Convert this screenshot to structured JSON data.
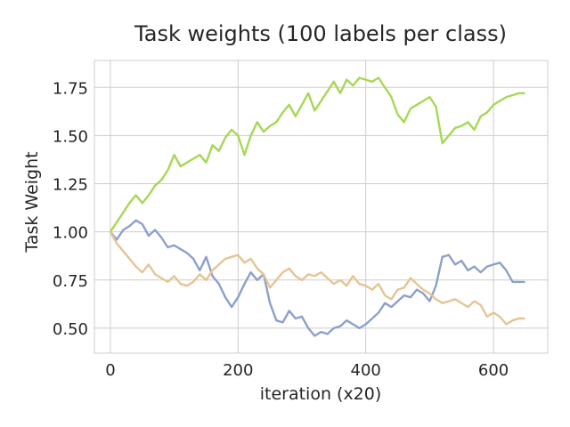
{
  "chart_data": {
    "type": "line",
    "title": "Task weights (100 labels per class)",
    "xlabel": "iteration (x20)",
    "ylabel": "Task Weight",
    "xlim": [
      -25,
      685
    ],
    "ylim": [
      0.37,
      1.89
    ],
    "xticks": [
      0,
      200,
      400,
      600
    ],
    "yticks": [
      0.5,
      0.75,
      1.0,
      1.25,
      1.5,
      1.75
    ],
    "ytick_labels": [
      "0.50",
      "0.75",
      "1.00",
      "1.25",
      "1.50",
      "1.75"
    ],
    "grid": true,
    "series": [
      {
        "color": "#a6d854",
        "x": [
          0,
          10,
          20,
          30,
          40,
          50,
          60,
          70,
          80,
          90,
          100,
          110,
          120,
          130,
          140,
          150,
          160,
          170,
          180,
          190,
          200,
          210,
          220,
          230,
          240,
          250,
          260,
          270,
          280,
          290,
          300,
          310,
          320,
          330,
          340,
          350,
          360,
          370,
          380,
          390,
          400,
          410,
          420,
          430,
          440,
          450,
          460,
          470,
          480,
          490,
          500,
          510,
          520,
          530,
          540,
          550,
          560,
          570,
          580,
          590,
          600,
          610,
          620,
          630,
          640,
          648
        ],
        "y": [
          1.0,
          1.05,
          1.1,
          1.15,
          1.19,
          1.15,
          1.19,
          1.24,
          1.27,
          1.32,
          1.4,
          1.34,
          1.36,
          1.38,
          1.4,
          1.36,
          1.45,
          1.42,
          1.49,
          1.53,
          1.5,
          1.4,
          1.5,
          1.57,
          1.52,
          1.55,
          1.57,
          1.62,
          1.66,
          1.6,
          1.66,
          1.72,
          1.63,
          1.68,
          1.73,
          1.78,
          1.72,
          1.79,
          1.76,
          1.8,
          1.79,
          1.78,
          1.8,
          1.75,
          1.7,
          1.61,
          1.57,
          1.64,
          1.66,
          1.68,
          1.7,
          1.65,
          1.46,
          1.5,
          1.54,
          1.55,
          1.57,
          1.53,
          1.6,
          1.62,
          1.66,
          1.68,
          1.7,
          1.71,
          1.72,
          1.72
        ]
      },
      {
        "color": "#8da0cb",
        "x": [
          0,
          10,
          20,
          30,
          40,
          50,
          60,
          70,
          80,
          90,
          100,
          110,
          120,
          130,
          140,
          150,
          160,
          170,
          180,
          190,
          200,
          210,
          220,
          230,
          240,
          250,
          260,
          270,
          280,
          290,
          300,
          310,
          320,
          330,
          340,
          350,
          360,
          370,
          380,
          390,
          400,
          410,
          420,
          430,
          440,
          450,
          460,
          470,
          480,
          490,
          500,
          510,
          520,
          530,
          540,
          550,
          560,
          570,
          580,
          590,
          600,
          610,
          620,
          630,
          640,
          648
        ],
        "y": [
          1.0,
          0.96,
          1.01,
          1.03,
          1.06,
          1.04,
          0.98,
          1.01,
          0.97,
          0.92,
          0.93,
          0.91,
          0.89,
          0.86,
          0.8,
          0.87,
          0.77,
          0.73,
          0.66,
          0.61,
          0.66,
          0.73,
          0.79,
          0.75,
          0.78,
          0.63,
          0.54,
          0.53,
          0.59,
          0.55,
          0.56,
          0.5,
          0.46,
          0.48,
          0.47,
          0.5,
          0.51,
          0.54,
          0.52,
          0.5,
          0.52,
          0.55,
          0.58,
          0.63,
          0.61,
          0.64,
          0.67,
          0.66,
          0.7,
          0.68,
          0.64,
          0.72,
          0.87,
          0.88,
          0.83,
          0.85,
          0.8,
          0.82,
          0.79,
          0.82,
          0.83,
          0.84,
          0.8,
          0.74,
          0.74,
          0.74
        ]
      },
      {
        "color": "#e5c494",
        "x": [
          0,
          10,
          20,
          30,
          40,
          50,
          60,
          70,
          80,
          90,
          100,
          110,
          120,
          130,
          140,
          150,
          160,
          170,
          180,
          190,
          200,
          210,
          220,
          230,
          240,
          250,
          260,
          270,
          280,
          290,
          300,
          310,
          320,
          330,
          340,
          350,
          360,
          370,
          380,
          390,
          400,
          410,
          420,
          430,
          440,
          450,
          460,
          470,
          480,
          490,
          500,
          510,
          520,
          530,
          540,
          550,
          560,
          570,
          580,
          590,
          600,
          610,
          620,
          630,
          640,
          648
        ],
        "y": [
          1.0,
          0.94,
          0.9,
          0.86,
          0.82,
          0.79,
          0.83,
          0.78,
          0.76,
          0.74,
          0.77,
          0.73,
          0.72,
          0.74,
          0.78,
          0.75,
          0.8,
          0.83,
          0.86,
          0.87,
          0.88,
          0.84,
          0.86,
          0.81,
          0.78,
          0.71,
          0.75,
          0.79,
          0.81,
          0.77,
          0.75,
          0.78,
          0.77,
          0.79,
          0.76,
          0.73,
          0.75,
          0.72,
          0.77,
          0.73,
          0.72,
          0.7,
          0.73,
          0.67,
          0.65,
          0.7,
          0.71,
          0.76,
          0.73,
          0.7,
          0.68,
          0.65,
          0.63,
          0.64,
          0.65,
          0.63,
          0.61,
          0.64,
          0.62,
          0.56,
          0.58,
          0.56,
          0.52,
          0.54,
          0.55,
          0.55
        ]
      }
    ]
  }
}
